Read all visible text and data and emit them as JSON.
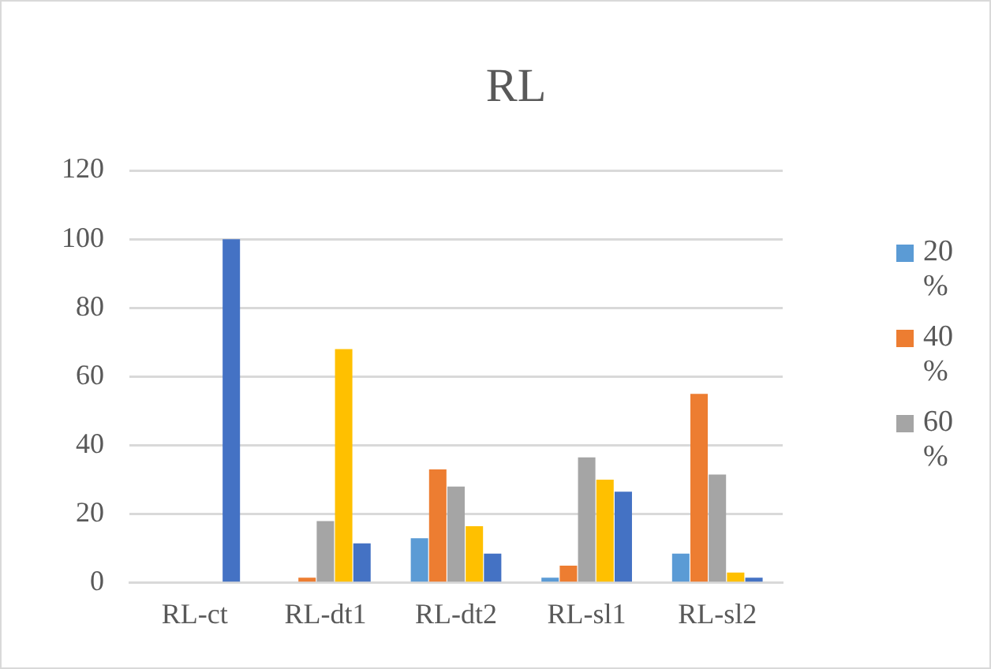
{
  "chart_data": {
    "type": "bar",
    "title": "RL",
    "categories": [
      "RL-ct",
      "RL-dt1",
      "RL-dt2",
      "RL-sl1",
      "RL-sl2"
    ],
    "series": [
      {
        "name": "20 %",
        "color": "#5b9bd5",
        "values": [
          0,
          0,
          13,
          1.5,
          8.5
        ]
      },
      {
        "name": "40 %",
        "color": "#ed7d31",
        "values": [
          0,
          1.5,
          33,
          5,
          55
        ]
      },
      {
        "name": "60 %",
        "color": "#a5a5a5",
        "values": [
          0,
          18,
          28,
          36.5,
          31.5
        ]
      },
      {
        "color": "#ffc000",
        "values": [
          0,
          68,
          16.5,
          30,
          3
        ]
      },
      {
        "color": "#4472c4",
        "values": [
          100,
          11.5,
          8.5,
          26.5,
          1.5
        ]
      }
    ],
    "ylim": [
      0,
      120
    ],
    "yticks": [
      0,
      20,
      40,
      60,
      80,
      100,
      120
    ],
    "grid": "y",
    "legend": "right"
  }
}
